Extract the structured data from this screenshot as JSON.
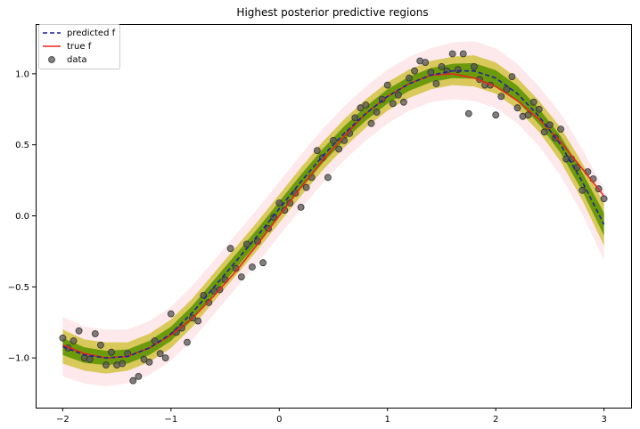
{
  "chart_data": {
    "type": "line",
    "title": "Highest posterior predictive regions",
    "xlabel": "",
    "ylabel": "",
    "xlim": [
      -2.25,
      3.25
    ],
    "ylim": [
      -1.35,
      1.35
    ],
    "xticks": [
      -2,
      -1,
      0,
      1,
      2,
      3
    ],
    "xtick_labels": [
      "−2",
      "−1",
      "0",
      "1",
      "2",
      "3"
    ],
    "yticks": [
      -1.0,
      -0.5,
      0.0,
      0.5,
      1.0
    ],
    "ytick_labels": [
      "−1.0",
      "−0.5",
      "0.0",
      "0.5",
      "1.0"
    ],
    "grid": false,
    "legend": {
      "placement": "top-left",
      "entries": [
        {
          "label": "predicted f",
          "style": "dashed-line",
          "color": "#1f1f9e"
        },
        {
          "label": "true f",
          "style": "solid-line",
          "color": "#e8261a"
        },
        {
          "label": "data",
          "style": "marker",
          "color": "#555555"
        }
      ]
    },
    "series": [
      {
        "name": "predicted f",
        "color": "#1f1f9e",
        "x": [
          -2.0,
          -1.8,
          -1.6,
          -1.4,
          -1.2,
          -1.0,
          -0.8,
          -0.6,
          -0.4,
          -0.2,
          0.0,
          0.2,
          0.4,
          0.6,
          0.8,
          1.0,
          1.2,
          1.4,
          1.6,
          1.8,
          2.0,
          2.2,
          2.4,
          2.6,
          2.8,
          3.0
        ],
        "y": [
          -0.92,
          -0.98,
          -1.0,
          -0.99,
          -0.93,
          -0.83,
          -0.68,
          -0.5,
          -0.32,
          -0.14,
          0.05,
          0.24,
          0.42,
          0.58,
          0.72,
          0.84,
          0.93,
          0.99,
          1.02,
          1.02,
          0.97,
          0.86,
          0.7,
          0.5,
          0.24,
          -0.06
        ]
      },
      {
        "name": "true f",
        "color": "#e8261a",
        "x": [
          -2.0,
          -1.8,
          -1.6,
          -1.4,
          -1.2,
          -1.0,
          -0.8,
          -0.6,
          -0.4,
          -0.2,
          0.0,
          0.2,
          0.4,
          0.6,
          0.8,
          1.0,
          1.2,
          1.4,
          1.6,
          1.8,
          2.0,
          2.2,
          2.4,
          2.6,
          2.8,
          3.0
        ],
        "y": [
          -0.91,
          -0.97,
          -1.0,
          -0.99,
          -0.93,
          -0.84,
          -0.72,
          -0.56,
          -0.39,
          -0.2,
          0.0,
          0.2,
          0.39,
          0.56,
          0.72,
          0.84,
          0.93,
          0.99,
          1.0,
          0.97,
          0.91,
          0.81,
          0.68,
          0.52,
          0.33,
          0.14
        ]
      }
    ],
    "bands": [
      {
        "color": "#fde9ec",
        "half_width": [
          0.21,
          0.2,
          0.2,
          0.19,
          0.19,
          0.19,
          0.19,
          0.19,
          0.19,
          0.19,
          0.19,
          0.19,
          0.19,
          0.19,
          0.19,
          0.19,
          0.19,
          0.19,
          0.2,
          0.21,
          0.21,
          0.21,
          0.21,
          0.22,
          0.23,
          0.25
        ]
      },
      {
        "color": "#d9c85a",
        "half_width": [
          0.12,
          0.11,
          0.11,
          0.1,
          0.1,
          0.1,
          0.1,
          0.1,
          0.1,
          0.1,
          0.1,
          0.1,
          0.1,
          0.1,
          0.1,
          0.1,
          0.1,
          0.1,
          0.1,
          0.11,
          0.11,
          0.11,
          0.11,
          0.12,
          0.13,
          0.15
        ]
      },
      {
        "color": "#6b9a0a",
        "half_width": [
          0.06,
          0.055,
          0.05,
          0.05,
          0.05,
          0.05,
          0.05,
          0.05,
          0.05,
          0.05,
          0.05,
          0.05,
          0.05,
          0.05,
          0.05,
          0.05,
          0.05,
          0.05,
          0.05,
          0.055,
          0.055,
          0.055,
          0.055,
          0.06,
          0.065,
          0.08
        ]
      }
    ],
    "data_points": {
      "name": "data",
      "color": "#555555",
      "points": [
        [
          -2.0,
          -0.86
        ],
        [
          -1.95,
          -0.93
        ],
        [
          -1.9,
          -0.88
        ],
        [
          -1.85,
          -0.81
        ],
        [
          -1.8,
          -1.0
        ],
        [
          -1.75,
          -1.01
        ],
        [
          -1.7,
          -0.83
        ],
        [
          -1.65,
          -0.91
        ],
        [
          -1.6,
          -1.05
        ],
        [
          -1.55,
          -0.96
        ],
        [
          -1.5,
          -1.05
        ],
        [
          -1.45,
          -1.04
        ],
        [
          -1.4,
          -0.97
        ],
        [
          -1.35,
          -1.16
        ],
        [
          -1.3,
          -1.13
        ],
        [
          -1.25,
          -1.01
        ],
        [
          -1.2,
          -1.03
        ],
        [
          -1.15,
          -0.88
        ],
        [
          -1.1,
          -0.97
        ],
        [
          -1.05,
          -1.0
        ],
        [
          -1.0,
          -0.69
        ],
        [
          -0.95,
          -0.82
        ],
        [
          -0.9,
          -0.79
        ],
        [
          -0.85,
          -0.89
        ],
        [
          -0.8,
          -0.72
        ],
        [
          -0.75,
          -0.74
        ],
        [
          -0.7,
          -0.56
        ],
        [
          -0.65,
          -0.61
        ],
        [
          -0.6,
          -0.53
        ],
        [
          -0.55,
          -0.52
        ],
        [
          -0.5,
          -0.45
        ],
        [
          -0.45,
          -0.23
        ],
        [
          -0.4,
          -0.37
        ],
        [
          -0.35,
          -0.43
        ],
        [
          -0.3,
          -0.2
        ],
        [
          -0.25,
          -0.36
        ],
        [
          -0.2,
          -0.18
        ],
        [
          -0.15,
          -0.33
        ],
        [
          -0.1,
          -0.09
        ],
        [
          -0.05,
          -0.01
        ],
        [
          0.0,
          0.09
        ],
        [
          0.05,
          0.04
        ],
        [
          0.1,
          0.09
        ],
        [
          0.15,
          0.16
        ],
        [
          0.2,
          0.06
        ],
        [
          0.25,
          0.2
        ],
        [
          0.3,
          0.27
        ],
        [
          0.35,
          0.46
        ],
        [
          0.4,
          0.41
        ],
        [
          0.45,
          0.27
        ],
        [
          0.5,
          0.53
        ],
        [
          0.55,
          0.47
        ],
        [
          0.6,
          0.53
        ],
        [
          0.65,
          0.58
        ],
        [
          0.7,
          0.69
        ],
        [
          0.75,
          0.76
        ],
        [
          0.8,
          0.78
        ],
        [
          0.85,
          0.65
        ],
        [
          0.9,
          0.73
        ],
        [
          0.95,
          0.82
        ],
        [
          1.0,
          0.92
        ],
        [
          1.05,
          0.79
        ],
        [
          1.1,
          0.85
        ],
        [
          1.15,
          0.8
        ],
        [
          1.2,
          0.97
        ],
        [
          1.25,
          1.02
        ],
        [
          1.3,
          1.09
        ],
        [
          1.35,
          1.08
        ],
        [
          1.4,
          1.01
        ],
        [
          1.45,
          0.93
        ],
        [
          1.5,
          1.05
        ],
        [
          1.55,
          1.02
        ],
        [
          1.6,
          1.14
        ],
        [
          1.65,
          1.03
        ],
        [
          1.7,
          1.14
        ],
        [
          1.75,
          0.72
        ],
        [
          1.8,
          1.05
        ],
        [
          1.85,
          0.96
        ],
        [
          1.9,
          0.92
        ],
        [
          1.95,
          0.92
        ],
        [
          2.0,
          0.71
        ],
        [
          2.05,
          0.84
        ],
        [
          2.1,
          0.89
        ],
        [
          2.15,
          0.98
        ],
        [
          2.2,
          0.76
        ],
        [
          2.25,
          0.7
        ],
        [
          2.3,
          0.71
        ],
        [
          2.35,
          0.8
        ],
        [
          2.4,
          0.75
        ],
        [
          2.45,
          0.59
        ],
        [
          2.5,
          0.64
        ],
        [
          2.55,
          0.55
        ],
        [
          2.6,
          0.61
        ],
        [
          2.65,
          0.4
        ],
        [
          2.7,
          0.4
        ],
        [
          2.75,
          0.34
        ],
        [
          2.8,
          0.18
        ],
        [
          2.85,
          0.31
        ],
        [
          2.9,
          0.26
        ],
        [
          2.95,
          0.19
        ],
        [
          3.0,
          0.12
        ]
      ]
    }
  }
}
